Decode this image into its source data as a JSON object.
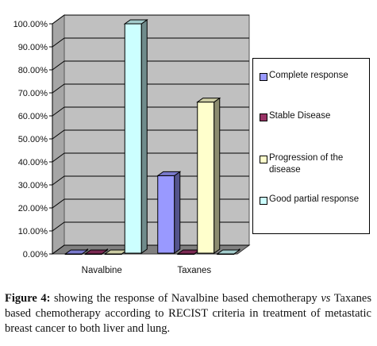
{
  "chart_data": {
    "type": "bar",
    "categories": [
      "Navalbine",
      "Taxanes"
    ],
    "series": [
      {
        "name": "Complete response",
        "values": [
          0,
          34
        ],
        "color": "#9999ff"
      },
      {
        "name": "Stable Disease",
        "values": [
          0,
          0
        ],
        "color": "#993366"
      },
      {
        "name": "Progression of the disease",
        "values": [
          0,
          66
        ],
        "color": "#ffffcc"
      },
      {
        "name": "Good partial response",
        "values": [
          100,
          0
        ],
        "color": "#ccffff"
      }
    ],
    "ylim": [
      0,
      100
    ],
    "yticks": [
      "0.00%",
      "10.00%",
      "20.00%",
      "30.00%",
      "40.00%",
      "50.00%",
      "60.00%",
      "70.00%",
      "80.00%",
      "90.00%",
      "100.00%"
    ],
    "grid": true,
    "legend_position": "right",
    "three_d": true,
    "plot_background": "#c0c0c0"
  },
  "caption": {
    "label": "Figure 4:",
    "text_before_italic": " showing the response of Navalbine based chemotherapy ",
    "italic": "vs",
    "text_after_italic": " Taxanes based chemotherapy according to RECIST criteria in treatment of metastatic breast cancer to both liver and lung."
  }
}
